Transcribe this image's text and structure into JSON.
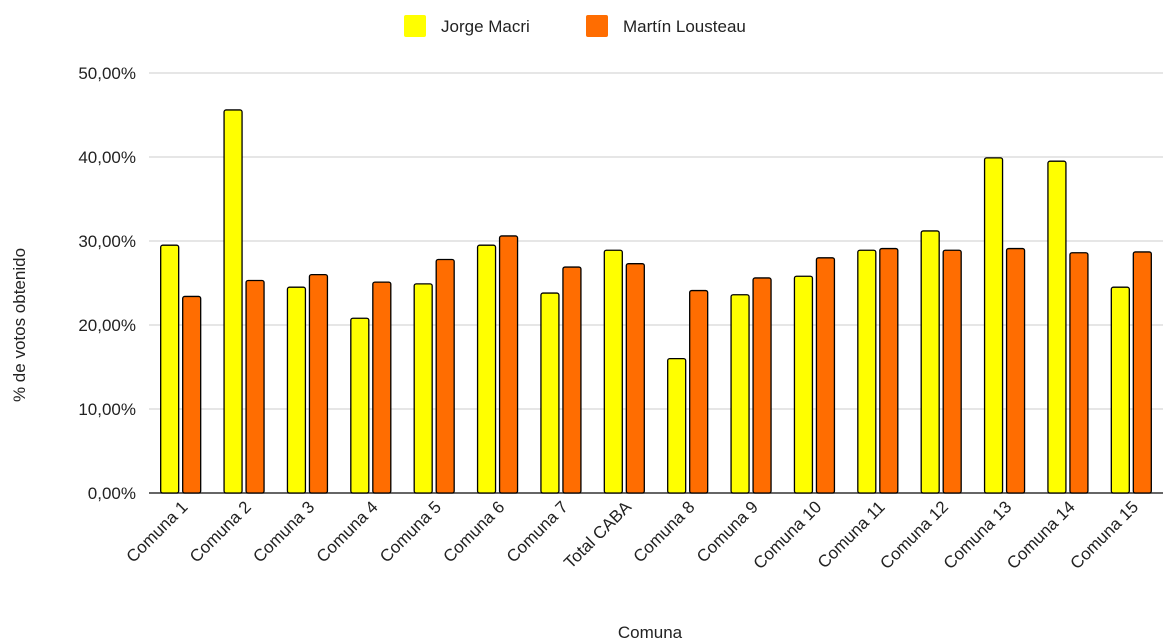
{
  "chart_data": {
    "type": "bar",
    "title": "",
    "xlabel": "Comuna",
    "ylabel": "% de votos obtenido",
    "ylim": [
      0,
      50
    ],
    "yticks": [
      "0,00%",
      "10,00%",
      "20,00%",
      "30,00%",
      "40,00%",
      "50,00%"
    ],
    "grid": true,
    "legend_position": "top-center",
    "categories": [
      "Comuna 1",
      "Comuna 2",
      "Comuna 3",
      "Comuna 4",
      "Comuna 5",
      "Comuna 6",
      "Comuna 7",
      "Total CABA",
      "Comuna 8",
      "Comuna 9",
      "Comuna 10",
      "Comuna 11",
      "Comuna 12",
      "Comuna 13",
      "Comuna 14",
      "Comuna 15"
    ],
    "series": [
      {
        "name": "Jorge Macri",
        "color": "#ffff00",
        "values": [
          29.5,
          45.6,
          24.5,
          20.8,
          24.9,
          29.5,
          23.8,
          28.9,
          16.0,
          23.6,
          25.8,
          28.9,
          31.2,
          39.9,
          39.5,
          24.5
        ]
      },
      {
        "name": "Martín Lousteau",
        "color": "#ff6d01",
        "values": [
          23.4,
          25.3,
          26.0,
          25.1,
          27.8,
          30.6,
          26.9,
          27.3,
          24.1,
          25.6,
          28.0,
          29.1,
          28.9,
          29.1,
          28.6,
          28.7
        ]
      }
    ]
  }
}
